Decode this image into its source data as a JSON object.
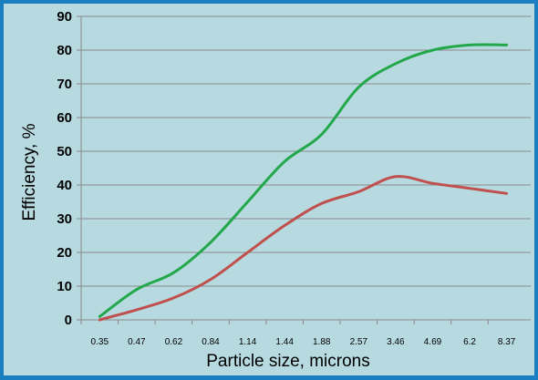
{
  "chart_data": {
    "type": "line",
    "categories": [
      "0.35",
      "0.47",
      "0.62",
      "0.84",
      "1.14",
      "1.44",
      "1.88",
      "2.57",
      "3.46",
      "4.69",
      "6.2",
      "8.37"
    ],
    "series": [
      {
        "color": "#22a84a",
        "values": [
          1,
          9,
          14,
          23,
          35,
          47,
          55,
          69,
          76,
          80,
          81.5,
          81.5
        ]
      },
      {
        "color": "#c0504d",
        "values": [
          0,
          3,
          6.5,
          12,
          20,
          28,
          34.5,
          38,
          42.5,
          40.5,
          39,
          37.5
        ]
      }
    ],
    "xlabel": "Particle size, microns",
    "ylabel": "Efficiency, %",
    "ylim": [
      0,
      90
    ],
    "yticks": [
      0,
      10,
      20,
      30,
      40,
      50,
      60,
      70,
      80,
      90
    ],
    "grid": "horizontal"
  }
}
